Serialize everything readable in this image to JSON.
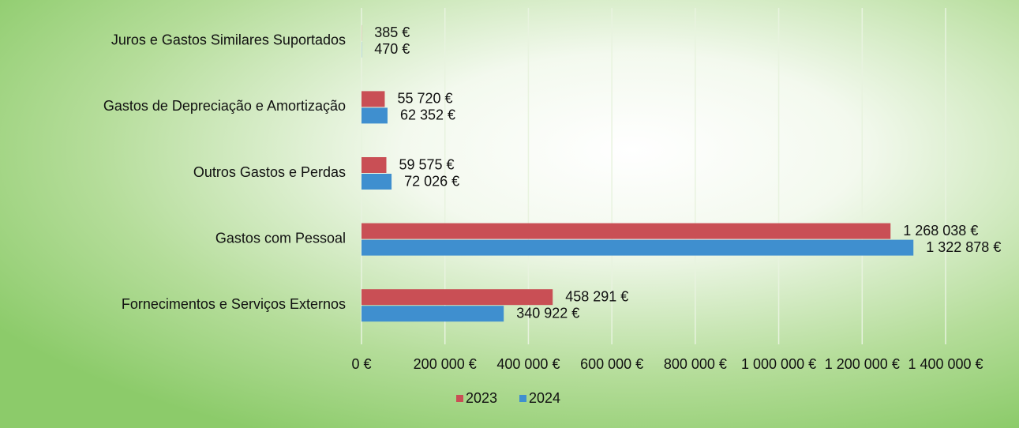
{
  "chart_data": {
    "type": "barh",
    "categories": [
      "Juros e Gastos Similares Suportados",
      "Gastos de Depreciação e Amortização",
      "Outros Gastos e Perdas",
      "Gastos com Pessoal",
      "Fornecimentos e Serviços Externos"
    ],
    "series": [
      {
        "name": "2023",
        "color": "#c94f55",
        "values": [
          385,
          55720,
          59575,
          1268038,
          458291
        ],
        "value_labels": [
          "385 €",
          "55 720 €",
          "59 575 €",
          "1 268 038 €",
          "458 291 €"
        ]
      },
      {
        "name": "2024",
        "color": "#3f8fcf",
        "values": [
          470,
          62352,
          72026,
          1322878,
          340922
        ],
        "value_labels": [
          "470 €",
          "62 352 €",
          "72 026 €",
          "1 322 878 €",
          "340 922 €"
        ]
      }
    ],
    "xlim": [
      0,
      1400000
    ],
    "xticks": [
      {
        "value": 0,
        "label": "0 €"
      },
      {
        "value": 200000,
        "label": "200 000 €"
      },
      {
        "value": 400000,
        "label": "400 000 €"
      },
      {
        "value": 600000,
        "label": "600 000 €"
      },
      {
        "value": 800000,
        "label": "800 000 €"
      },
      {
        "value": 1000000,
        "label": "1 000 000 €"
      },
      {
        "value": 1200000,
        "label": "1 200 000 €"
      },
      {
        "value": 1400000,
        "label": "1 400 000 €"
      }
    ],
    "grid": true,
    "legend": "bottom"
  }
}
